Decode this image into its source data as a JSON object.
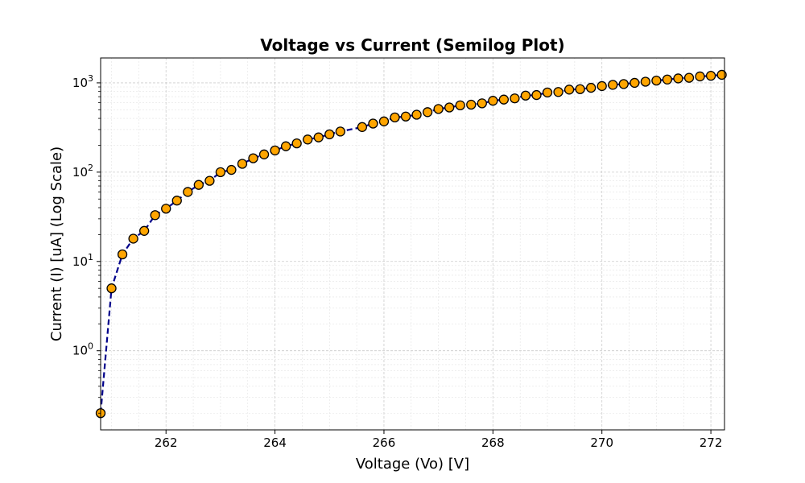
{
  "chart_data": {
    "type": "line",
    "title": "Voltage vs Current (Semilog Plot)",
    "xlabel": "Voltage (Vo) [V]",
    "ylabel": "Current (I) [uA] (Log Scale)",
    "xlim": [
      260.8,
      272.25
    ],
    "ylim": [
      0.13,
      1900
    ],
    "yscale": "log",
    "grid": true,
    "x_ticks": [
      262,
      264,
      266,
      268,
      270,
      272
    ],
    "y_ticks": [
      {
        "base": "10",
        "exp": "0",
        "value": 1
      },
      {
        "base": "10",
        "exp": "1",
        "value": 10
      },
      {
        "base": "10",
        "exp": "2",
        "value": 100
      },
      {
        "base": "10",
        "exp": "3",
        "value": 1000
      }
    ],
    "line_color": "#00008b",
    "marker_color": "#ffa500",
    "series": [
      {
        "x": [
          260.8,
          261.0,
          261.2,
          261.4,
          261.6,
          261.8,
          262.0,
          262.2,
          262.4,
          262.6,
          262.8,
          263.0,
          263.2,
          263.4,
          263.6,
          263.8,
          264.0,
          264.2,
          264.4,
          264.6,
          264.8,
          265.0,
          265.2,
          265.6,
          265.8,
          266.0,
          266.2,
          266.4,
          266.6,
          266.8,
          267.0,
          267.2,
          267.4,
          267.6,
          267.8,
          268.0,
          268.2,
          268.4,
          268.6,
          268.8,
          269.0,
          269.2,
          269.4,
          269.6,
          269.8,
          270.0,
          270.2,
          270.4,
          270.6,
          270.8,
          271.0,
          271.2,
          271.4,
          271.6,
          271.8,
          272.0,
          272.2
        ],
        "y": [
          0.2,
          5,
          12,
          18,
          22,
          33,
          39,
          48,
          60,
          72,
          80,
          100,
          106,
          124,
          143,
          158,
          175,
          195,
          210,
          232,
          245,
          265,
          285,
          320,
          350,
          370,
          410,
          420,
          440,
          470,
          510,
          530,
          560,
          570,
          590,
          630,
          650,
          670,
          720,
          730,
          780,
          790,
          840,
          850,
          880,
          920,
          950,
          970,
          1000,
          1030,
          1060,
          1090,
          1120,
          1140,
          1180,
          1200,
          1230
        ]
      }
    ]
  }
}
